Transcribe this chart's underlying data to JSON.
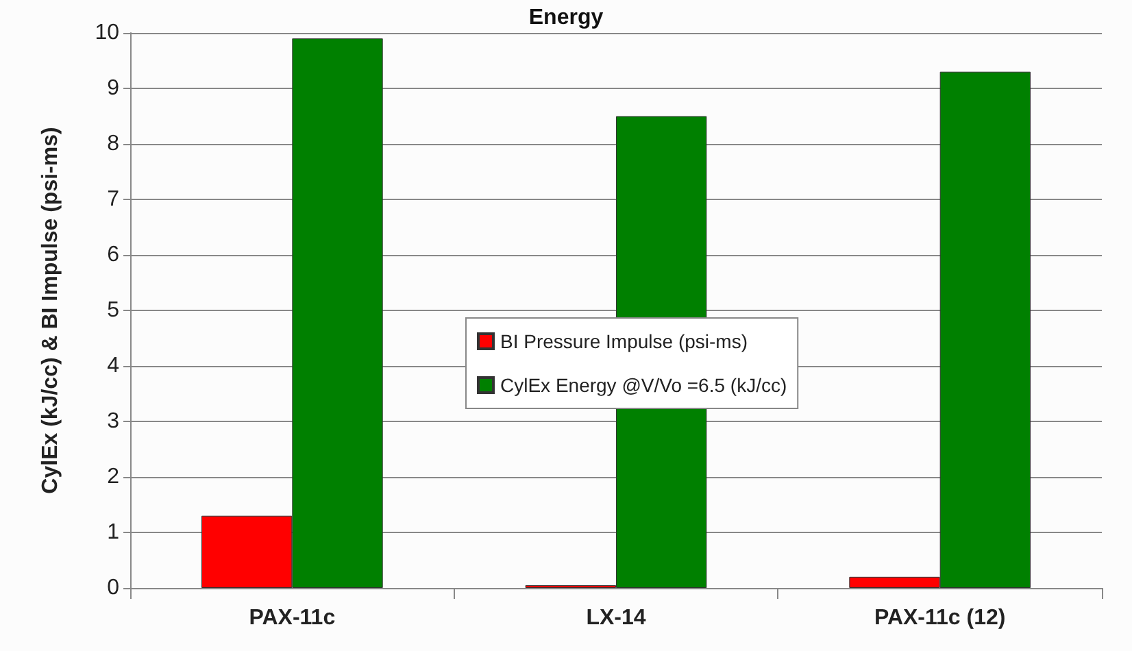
{
  "chart_data": {
    "type": "bar",
    "title": "Energy",
    "ylabel": "CylEx (kJ/cc) & BI Impulse (psi-ms)",
    "categories": [
      "PAX-11c",
      "LX-14",
      "PAX-11c (12)"
    ],
    "series": [
      {
        "name": "BI Pressure Impulse (psi-ms)",
        "color": "#ff0000",
        "values": [
          1.3,
          0.05,
          0.2
        ]
      },
      {
        "name": "CylEx Energy @V/Vo =6.5 (kJ/cc)",
        "color": "#008000",
        "values": [
          9.9,
          8.5,
          9.3
        ]
      }
    ],
    "ylim": [
      0,
      10
    ],
    "yticks": [
      0,
      1,
      2,
      3,
      4,
      5,
      6,
      7,
      8,
      9,
      10
    ],
    "grid": "y",
    "legend": "center"
  }
}
